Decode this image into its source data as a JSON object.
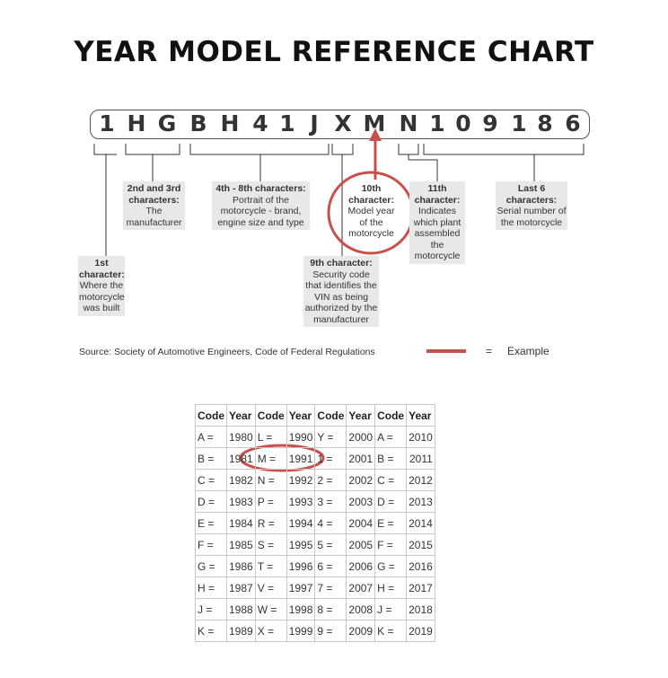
{
  "title": "YEAR MODEL REFERENCE CHART",
  "vin": [
    "1",
    "H",
    "G",
    "B",
    "H",
    "4",
    "1",
    "J",
    "X",
    "M",
    "N",
    "1",
    "0",
    "9",
    "1",
    "8",
    "6"
  ],
  "labels": {
    "first": {
      "head": "1st character:",
      "body": "Where the motorcycle was built"
    },
    "second_third": {
      "head": "2nd and 3rd characters:",
      "body": "The manufacturer"
    },
    "fourth_eighth": {
      "head": "4th - 8th characters:",
      "body": "Portrait of the motorcycle - brand, engine size and type"
    },
    "ninth": {
      "head": "9th character:",
      "body": "Security code that identifies the VIN as being authorized by the manufacturer"
    },
    "tenth": {
      "head": "10th character:",
      "body": "Model year of the motorcycle"
    },
    "eleventh": {
      "head": "11th character:",
      "body": "Indicates which plant assembled the motorcycle"
    },
    "last6": {
      "head": "Last 6 characters:",
      "body": "Serial number of the motorcycle"
    }
  },
  "source": "Source:  Society of Automotive Engineers, Code of Federal Regulations",
  "legend": {
    "equals": "=",
    "label": "Example",
    "color": "#c9504a"
  },
  "table": {
    "headers": [
      "Code",
      "Year",
      "Code",
      "Year",
      "Code",
      "Year",
      "Code",
      "Year"
    ],
    "rows": [
      [
        "A =",
        "1980",
        "L =",
        "1990",
        "Y =",
        "2000",
        "A =",
        "2010"
      ],
      [
        "B =",
        "1981",
        "M =",
        "1991",
        "1 =",
        "2001",
        "B =",
        "2011"
      ],
      [
        "C =",
        "1982",
        "N =",
        "1992",
        "2 =",
        "2002",
        "C =",
        "2012"
      ],
      [
        "D =",
        "1983",
        "P =",
        "1993",
        "3 =",
        "2003",
        "D =",
        "2013"
      ],
      [
        "E =",
        "1984",
        "R =",
        "1994",
        "4 =",
        "2004",
        "E =",
        "2014"
      ],
      [
        "F =",
        "1985",
        "S =",
        "1995",
        "5 =",
        "2005",
        "F =",
        "2015"
      ],
      [
        "G =",
        "1986",
        "T =",
        "1996",
        "6 =",
        "2006",
        "G =",
        "2016"
      ],
      [
        "H =",
        "1987",
        "V =",
        "1997",
        "7 =",
        "2007",
        "H =",
        "2017"
      ],
      [
        "J =",
        "1988",
        "W =",
        "1998",
        "8 =",
        "2008",
        "J =",
        "2018"
      ],
      [
        "K =",
        "1989",
        "X =",
        "1999",
        "9 =",
        "2009",
        "K =",
        "2019"
      ]
    ]
  }
}
